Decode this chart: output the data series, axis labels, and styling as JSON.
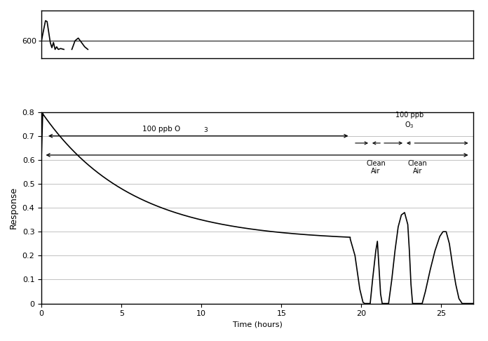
{
  "xlim": [
    0,
    27
  ],
  "ylim_main": [
    0,
    0.8
  ],
  "xlabel": "Time (hours)",
  "ylabel": "Response",
  "yticks_main": [
    0,
    0.1,
    0.2,
    0.3,
    0.4,
    0.5,
    0.6,
    0.7,
    0.8
  ],
  "xticks": [
    0,
    5,
    10,
    15,
    20,
    25
  ],
  "bg_color": "#ffffff",
  "line_color": "#000000"
}
